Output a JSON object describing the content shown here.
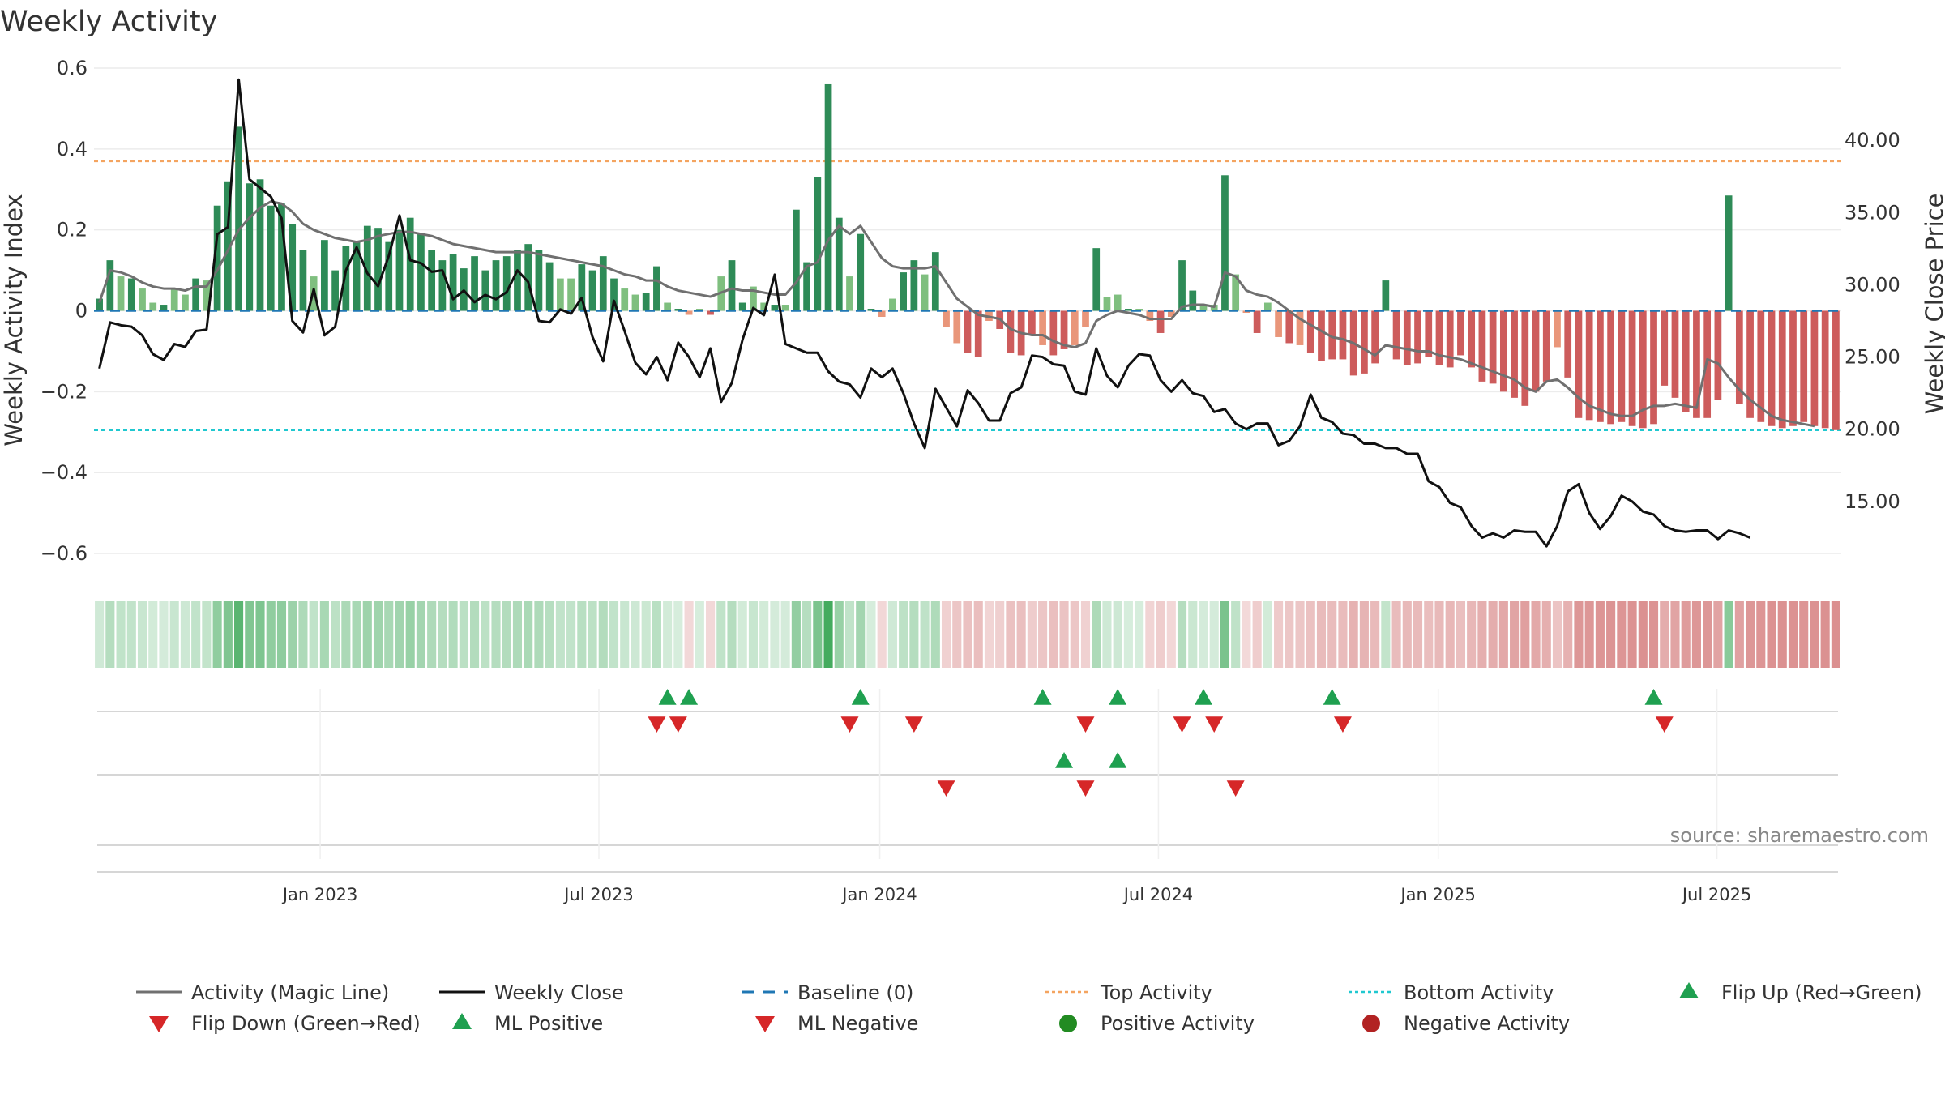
{
  "chart_data": {
    "type": "bar",
    "title": "Weekly Activity",
    "ylabel": "Weekly Activity Index",
    "y2label": "Weekly Close Price",
    "ylim": [
      -0.65,
      0.6
    ],
    "y2lim": [
      10.0,
      45.0
    ],
    "y_ticks": [
      "0.6",
      "0.4",
      "0.2",
      "0",
      "−0.2",
      "−0.4",
      "−0.6"
    ],
    "y2_ticks": [
      "40.00",
      "35.00",
      "30.00",
      "25.00",
      "20.00",
      "15.00"
    ],
    "x_ticks": [
      "Jan 2023",
      "Jul 2023",
      "Jan 2024",
      "Jul 2024",
      "Jan 2025",
      "Jul 2025"
    ],
    "top_activity": 0.37,
    "bottom_activity": -0.295,
    "activity_values": [
      0.03,
      0.125,
      0.085,
      0.08,
      0.055,
      0.02,
      0.015,
      0.055,
      0.04,
      0.08,
      0.075,
      0.26,
      0.32,
      0.455,
      0.315,
      0.325,
      0.26,
      0.265,
      0.215,
      0.15,
      0.085,
      0.175,
      0.1,
      0.16,
      0.17,
      0.21,
      0.205,
      0.17,
      0.2,
      0.23,
      0.19,
      0.15,
      0.125,
      0.14,
      0.105,
      0.135,
      0.1,
      0.125,
      0.135,
      0.15,
      0.165,
      0.15,
      0.12,
      0.08,
      0.08,
      0.115,
      0.1,
      0.135,
      0.08,
      0.055,
      0.04,
      0.045,
      0.11,
      0.02,
      0.005,
      -0.01,
      0.005,
      -0.01,
      0.085,
      0.125,
      0.02,
      0.06,
      0.02,
      0.015,
      0.015,
      0.25,
      0.12,
      0.33,
      0.56,
      0.23,
      0.085,
      0.19,
      0.005,
      -0.015,
      0.03,
      0.095,
      0.125,
      0.09,
      0.145,
      -0.04,
      -0.08,
      -0.105,
      -0.115,
      -0.025,
      -0.045,
      -0.105,
      -0.11,
      -0.06,
      -0.085,
      -0.11,
      -0.095,
      -0.085,
      -0.04,
      0.155,
      0.035,
      0.04,
      0.005,
      0.005,
      -0.025,
      -0.055,
      -0.015,
      0.125,
      0.05,
      0.015,
      0.015,
      0.335,
      0.09,
      -0.005,
      -0.055,
      0.02,
      -0.065,
      -0.08,
      -0.085,
      -0.105,
      -0.125,
      -0.12,
      -0.12,
      -0.16,
      -0.155,
      -0.13,
      0.075,
      -0.12,
      -0.135,
      -0.13,
      -0.115,
      -0.135,
      -0.14,
      -0.11,
      -0.14,
      -0.175,
      -0.18,
      -0.2,
      -0.215,
      -0.235,
      -0.2,
      -0.175,
      -0.09,
      -0.165,
      -0.265,
      -0.27,
      -0.275,
      -0.28,
      -0.275,
      -0.285,
      -0.29,
      -0.28,
      -0.185,
      -0.215,
      -0.25,
      -0.265,
      -0.265,
      -0.22,
      0.285,
      -0.23,
      -0.265,
      -0.275,
      -0.285,
      -0.29,
      -0.285,
      -0.275,
      -0.285,
      -0.29,
      -0.295
    ],
    "magic_line": [
      0.02,
      0.1,
      0.095,
      0.085,
      0.07,
      0.06,
      0.055,
      0.055,
      0.05,
      0.06,
      0.06,
      0.1,
      0.15,
      0.2,
      0.23,
      0.255,
      0.27,
      0.265,
      0.245,
      0.215,
      0.2,
      0.19,
      0.18,
      0.175,
      0.17,
      0.175,
      0.185,
      0.19,
      0.195,
      0.195,
      0.19,
      0.185,
      0.175,
      0.165,
      0.16,
      0.155,
      0.15,
      0.145,
      0.145,
      0.145,
      0.145,
      0.14,
      0.135,
      0.13,
      0.125,
      0.12,
      0.115,
      0.11,
      0.1,
      0.09,
      0.085,
      0.075,
      0.075,
      0.06,
      0.05,
      0.045,
      0.04,
      0.035,
      0.045,
      0.055,
      0.05,
      0.05,
      0.045,
      0.04,
      0.04,
      0.07,
      0.11,
      0.12,
      0.175,
      0.21,
      0.19,
      0.21,
      0.17,
      0.13,
      0.11,
      0.105,
      0.105,
      0.105,
      0.11,
      0.07,
      0.03,
      0.01,
      -0.01,
      -0.015,
      -0.02,
      -0.045,
      -0.055,
      -0.06,
      -0.06,
      -0.075,
      -0.085,
      -0.09,
      -0.08,
      -0.025,
      -0.01,
      0.0,
      -0.005,
      -0.01,
      -0.02,
      -0.02,
      -0.02,
      0.01,
      0.015,
      0.015,
      0.01,
      0.095,
      0.085,
      0.05,
      0.04,
      0.035,
      0.02,
      0.0,
      -0.02,
      -0.035,
      -0.05,
      -0.065,
      -0.07,
      -0.08,
      -0.095,
      -0.11,
      -0.085,
      -0.09,
      -0.095,
      -0.1,
      -0.1,
      -0.11,
      -0.115,
      -0.12,
      -0.13,
      -0.14,
      -0.15,
      -0.16,
      -0.17,
      -0.19,
      -0.2,
      -0.175,
      -0.17,
      -0.19,
      -0.215,
      -0.235,
      -0.245,
      -0.255,
      -0.26,
      -0.26,
      -0.245,
      -0.235,
      -0.235,
      -0.23,
      -0.235,
      -0.24,
      -0.12,
      -0.13,
      -0.165,
      -0.195,
      -0.22,
      -0.24,
      -0.26,
      -0.27,
      -0.275,
      -0.28,
      -0.285
    ],
    "weekly_close": [
      24.2,
      27.4,
      27.2,
      27.1,
      26.5,
      25.2,
      24.8,
      25.9,
      25.7,
      26.8,
      26.9,
      33.5,
      34.0,
      44.2,
      37.3,
      36.7,
      36.1,
      34.6,
      27.5,
      26.7,
      29.7,
      26.5,
      27.1,
      31.0,
      32.6,
      30.8,
      29.9,
      32.0,
      34.8,
      31.7,
      31.5,
      30.9,
      31.0,
      29.0,
      29.6,
      28.8,
      29.3,
      29.0,
      29.5,
      31.0,
      30.2,
      27.5,
      27.4,
      28.3,
      28.0,
      29.1,
      26.4,
      24.7,
      28.9,
      26.8,
      24.6,
      23.8,
      25.0,
      23.4,
      26.0,
      25.0,
      23.6,
      25.6,
      21.9,
      23.2,
      26.2,
      28.4,
      27.9,
      30.7,
      25.9,
      25.6,
      25.3,
      25.3,
      24.0,
      23.3,
      23.1,
      22.2,
      24.2,
      23.6,
      24.2,
      22.5,
      20.4,
      18.7,
      22.8,
      21.5,
      20.2,
      22.7,
      21.8,
      20.6,
      20.6,
      22.5,
      22.9,
      25.1,
      25.0,
      24.5,
      24.4,
      22.6,
      22.4,
      25.6,
      23.7,
      22.9,
      24.4,
      25.2,
      25.1,
      23.4,
      22.6,
      23.4,
      22.5,
      22.3,
      21.2,
      21.4,
      20.4,
      20.0,
      20.4,
      20.4,
      18.9,
      19.2,
      20.2,
      22.4,
      20.8,
      20.5,
      19.7,
      19.6,
      19.0,
      19.0,
      18.7,
      18.7,
      18.3,
      18.3,
      16.4,
      16.0,
      14.9,
      14.6,
      13.3,
      12.5,
      12.8,
      12.5,
      13.0,
      12.9,
      12.9,
      11.9,
      13.3,
      15.7,
      16.2,
      14.2,
      13.1,
      14.0,
      15.4,
      15.0,
      14.3,
      14.1,
      13.3,
      13.0,
      12.9,
      13.0,
      13.0,
      12.4,
      13.0,
      12.8,
      12.5
    ],
    "flip_up": [
      53,
      55,
      71,
      88,
      95,
      103,
      115,
      145
    ],
    "flip_down": [
      52,
      54,
      70,
      76,
      92,
      101,
      104,
      116,
      146
    ],
    "ml_positive": [
      90,
      95
    ],
    "ml_negative": [
      79,
      92,
      106
    ],
    "source": "source: sharemaestro.com",
    "legend": [
      "Activity (Magic Line)",
      "Weekly Close",
      "Baseline (0)",
      "Top Activity",
      "Bottom Activity",
      "Flip Up (Red→Green)",
      "Flip Down (Green→Red)",
      "ML Positive",
      "ML Negative",
      "Positive Activity",
      "Negative Activity"
    ]
  },
  "colors": {
    "bar_green_dark": "#2e8b57",
    "bar_green_light": "#7fbf7f",
    "bar_red_dark": "#cd5c5c",
    "bar_red_light": "#e9967a",
    "magic_line": "#707070",
    "close_line": "#111111",
    "baseline": "#1f77b4",
    "top": "#f4a460",
    "bottom": "#20c8d0",
    "flip_up": "#1fa050",
    "flip_down": "#d62728",
    "positive_dot": "#228b22",
    "negative_dot": "#b22222",
    "strip_green": "#3aa655",
    "strip_red": "#c44a4a"
  }
}
